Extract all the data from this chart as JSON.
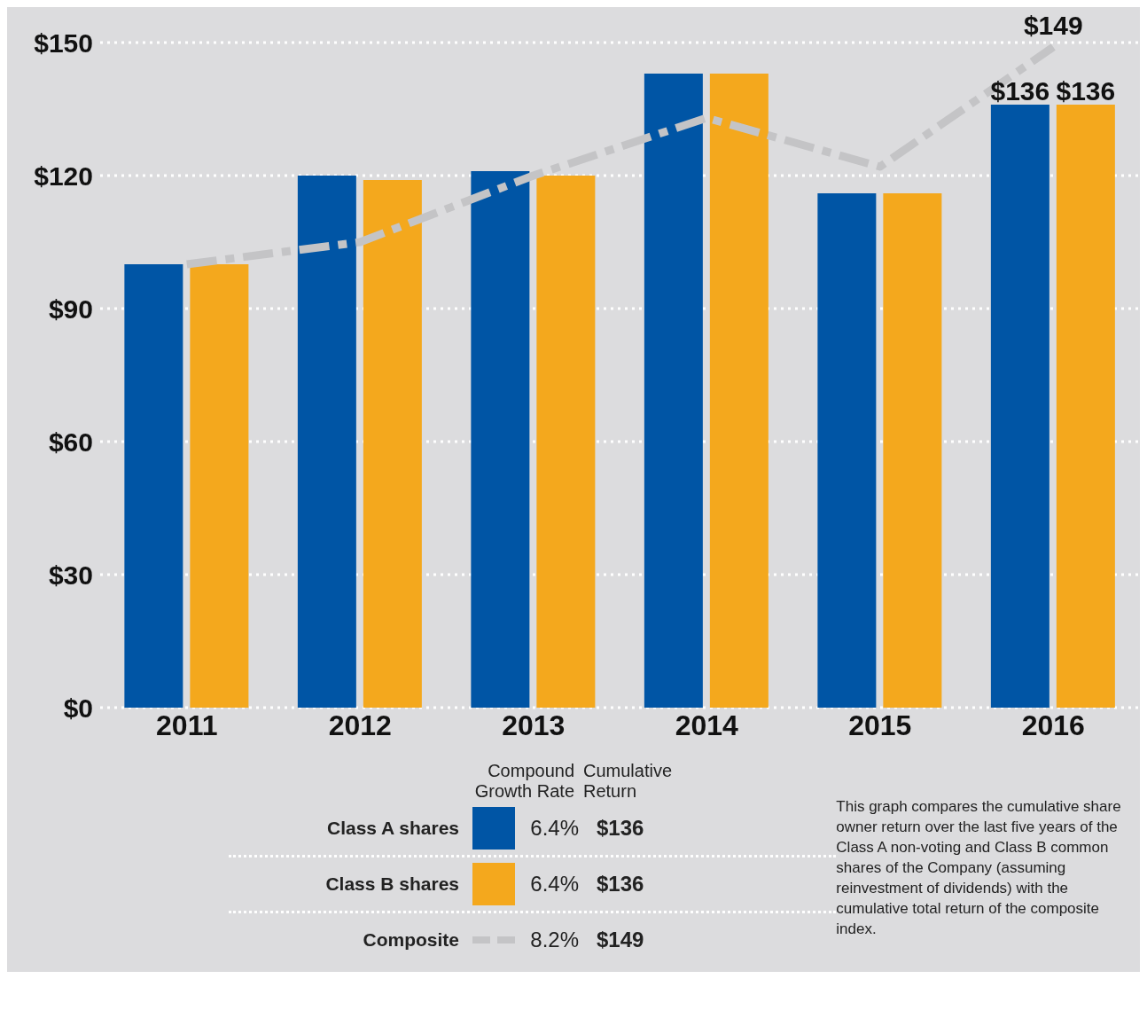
{
  "chart_data": {
    "type": "bar",
    "categories": [
      "2011",
      "2012",
      "2013",
      "2014",
      "2015",
      "2016"
    ],
    "series": [
      {
        "name": "Class A shares",
        "color": "#0055a5",
        "values": [
          100,
          120,
          121,
          143,
          116,
          136
        ],
        "value_labels": [
          null,
          null,
          null,
          null,
          null,
          "$136"
        ]
      },
      {
        "name": "Class B shares",
        "color": "#f4a81d",
        "values": [
          100,
          119,
          120,
          143,
          116,
          136
        ],
        "value_labels": [
          null,
          null,
          null,
          null,
          null,
          "$136"
        ]
      },
      {
        "name": "Composite",
        "type": "line",
        "color": "#c4c4c6",
        "line_style": "dashed",
        "values": [
          100,
          105,
          120,
          133,
          122,
          149
        ],
        "value_labels": [
          null,
          null,
          null,
          null,
          null,
          "$149"
        ]
      }
    ],
    "ylim": [
      0,
      150
    ],
    "yticks": [
      {
        "value": 0,
        "label": "$0"
      },
      {
        "value": 30,
        "label": "$30"
      },
      {
        "value": 60,
        "label": "$60"
      },
      {
        "value": 90,
        "label": "$90"
      },
      {
        "value": 120,
        "label": "$120"
      },
      {
        "value": 150,
        "label": "$150"
      }
    ],
    "grid": "y",
    "legend": "bottom",
    "annotations": [
      "Compound Growth Rate",
      "Cumulative Return",
      "6.4%",
      "$136",
      "6.4%",
      "$136",
      "8.2%",
      "$149",
      "This graph compares the cumulative share owner return over the last five years of the Class A non-voting and Class B common shares of the Company (assuming reinvestment of dividends) with the cumulative total return of the composite index."
    ]
  }
}
